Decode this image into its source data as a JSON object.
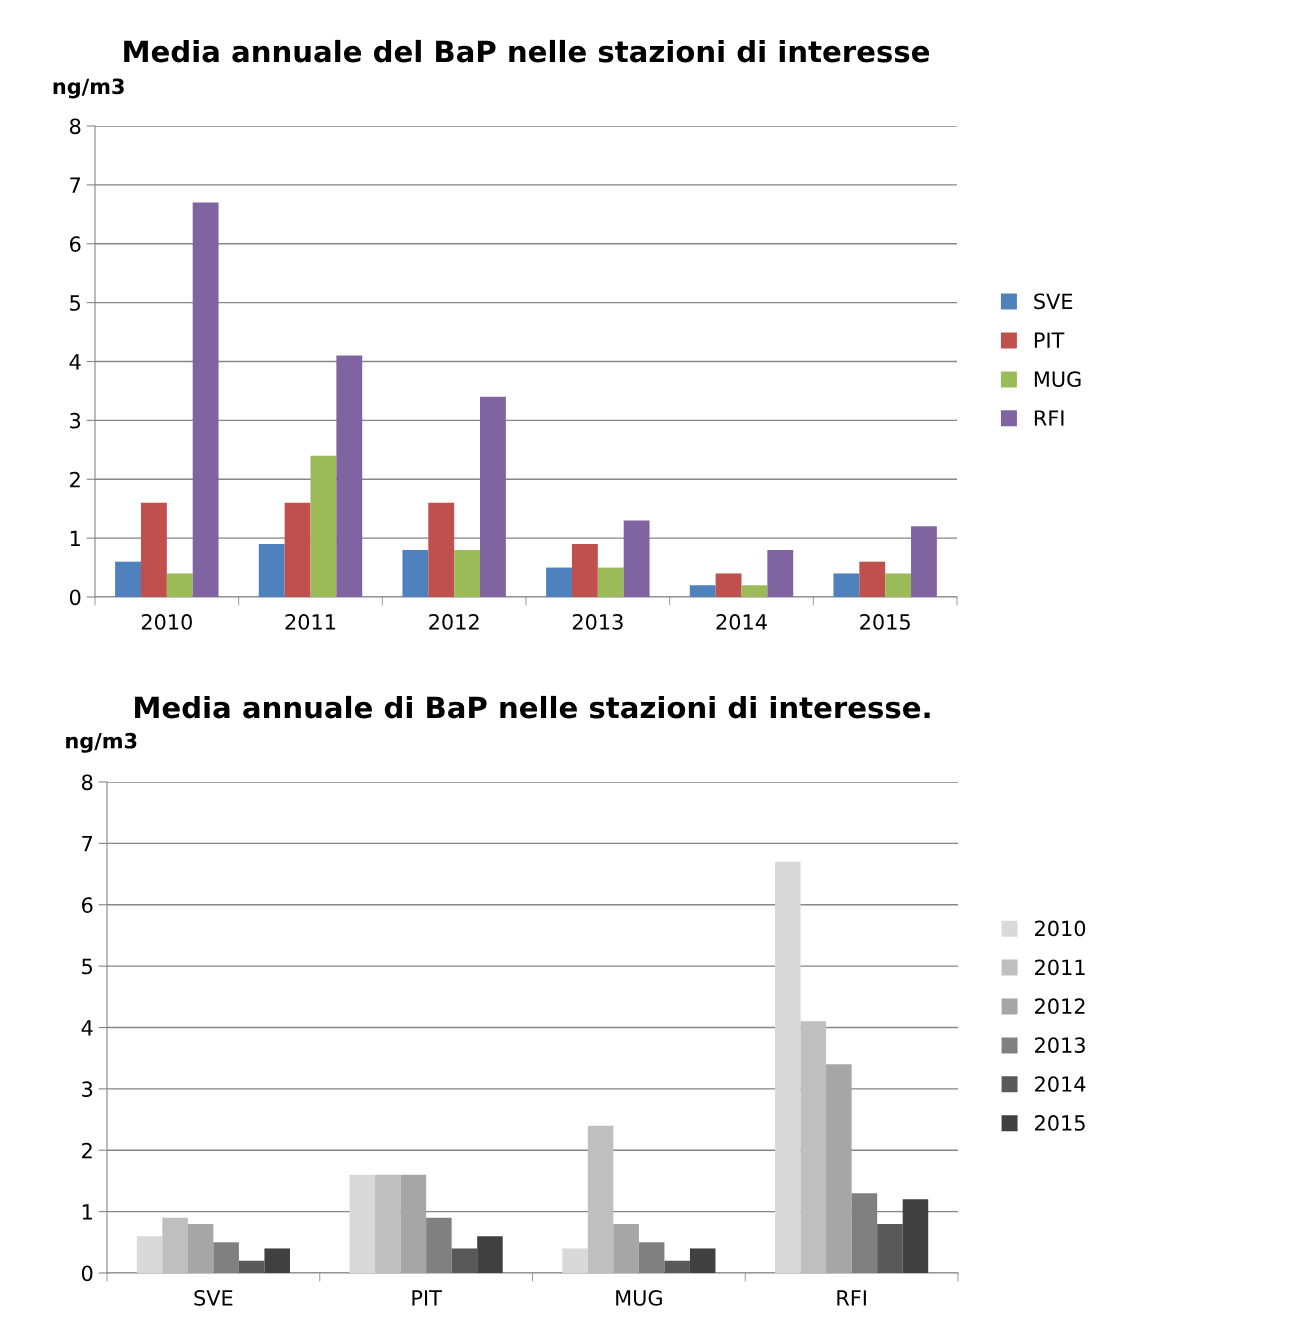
{
  "chart_data": [
    {
      "type": "bar",
      "title": "Media annuale del BaP nelle stazioni di interesse",
      "ylabel": "ng/m3",
      "categories": [
        "2010",
        "2011",
        "2012",
        "2013",
        "2014",
        "2015"
      ],
      "series": [
        {
          "name": "SVE",
          "color": "#4f81bd",
          "values": [
            0.6,
            0.9,
            0.8,
            0.5,
            0.2,
            0.4
          ]
        },
        {
          "name": "PIT",
          "color": "#c0504d",
          "values": [
            1.6,
            1.6,
            1.6,
            0.9,
            0.4,
            0.6
          ]
        },
        {
          "name": "MUG",
          "color": "#9bbb59",
          "values": [
            0.4,
            2.4,
            0.8,
            0.5,
            0.2,
            0.4
          ]
        },
        {
          "name": "RFI",
          "color": "#8064a2",
          "values": [
            6.7,
            4.1,
            3.4,
            1.3,
            0.8,
            1.2
          ]
        }
      ],
      "ylim": [
        0,
        8
      ],
      "yticks": [
        0,
        1,
        2,
        3,
        4,
        5,
        6,
        7,
        8
      ],
      "grid": "y",
      "legend": "right"
    },
    {
      "type": "bar",
      "title": "Media annuale di BaP nelle stazioni di interesse.",
      "ylabel": "ng/m3",
      "categories": [
        "SVE",
        "PIT",
        "MUG",
        "RFI"
      ],
      "series": [
        {
          "name": "2010",
          "color": "#d9d9d9",
          "values": [
            0.6,
            1.6,
            0.4,
            6.7
          ]
        },
        {
          "name": "2011",
          "color": "#bfbfbf",
          "values": [
            0.9,
            1.6,
            2.4,
            4.1
          ]
        },
        {
          "name": "2012",
          "color": "#a6a6a6",
          "values": [
            0.8,
            1.6,
            0.8,
            3.4
          ]
        },
        {
          "name": "2013",
          "color": "#808080",
          "values": [
            0.5,
            0.9,
            0.5,
            1.3
          ]
        },
        {
          "name": "2014",
          "color": "#595959",
          "values": [
            0.2,
            0.4,
            0.2,
            0.8
          ]
        },
        {
          "name": "2015",
          "color": "#404040",
          "values": [
            0.4,
            0.6,
            0.4,
            1.2
          ]
        }
      ],
      "ylim": [
        0,
        8
      ],
      "yticks": [
        0,
        1,
        2,
        3,
        4,
        5,
        6,
        7,
        8
      ],
      "grid": "y",
      "legend": "right"
    }
  ]
}
